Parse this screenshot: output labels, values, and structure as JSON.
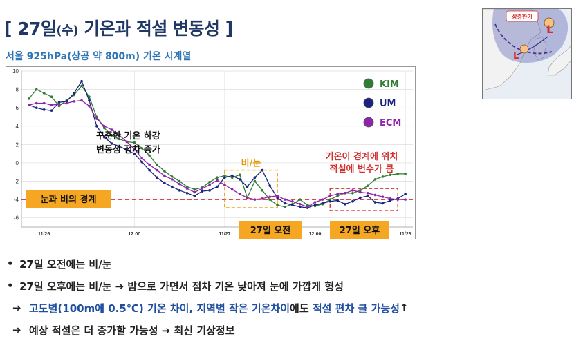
{
  "header": {
    "title_prefix": "[ 27일",
    "title_paren": "(수)",
    "title_rest": " 기온과 적설 변동성 ]",
    "subtitle": "서울 925hPa(상공 약 800m) 기온 시계열"
  },
  "inset_map": {
    "label": "상층한기",
    "low_symbol": "L",
    "colors": {
      "sea": "#e9eef5",
      "land": "#f2f2f2",
      "cold_area": "#4a4fa8"
    }
  },
  "chart_data": {
    "type": "line",
    "x_ticks": [
      {
        "x": 0,
        "label": "11/26"
      },
      {
        "x": 12,
        "label": "12:00"
      },
      {
        "x": 24,
        "label": "11/27"
      },
      {
        "x": 36,
        "label": "12:00"
      },
      {
        "x": 48,
        "label": "11/28"
      }
    ],
    "xlim": [
      -3,
      49
    ],
    "ylim": [
      -7,
      10
    ],
    "y_ticks": [
      10,
      8,
      6,
      4,
      2,
      0,
      -2,
      -4,
      -6
    ],
    "grid": true,
    "legend_position": "top-right",
    "series": [
      {
        "name": "KIM",
        "color": "#2e7d32",
        "x": [
          -2,
          -1,
          0,
          1,
          2,
          3,
          4,
          5,
          6,
          7,
          8,
          9,
          10,
          11,
          12,
          13,
          14,
          15,
          16,
          17,
          18,
          19,
          20,
          21,
          22,
          23,
          24,
          25,
          26,
          27,
          28,
          29,
          30,
          31,
          32,
          33,
          34,
          35,
          36,
          37,
          38,
          39,
          40,
          41,
          42,
          43,
          44,
          45,
          46,
          47,
          48
        ],
        "values": [
          7.0,
          8.0,
          7.6,
          7.2,
          6.2,
          6.8,
          7.4,
          8.4,
          7.2,
          5.0,
          3.8,
          3.0,
          2.6,
          2.3,
          2.2,
          1.6,
          0.8,
          -0.2,
          -0.9,
          -1.5,
          -2.0,
          -2.6,
          -2.9,
          -2.7,
          -2.1,
          -1.6,
          -1.4,
          -1.6,
          -1.3,
          -3.8,
          -2.0,
          -3.0,
          -4.0,
          -4.6,
          -4.8,
          -4.5,
          -4.0,
          -4.6,
          -4.7,
          -4.5,
          -4.0,
          -3.6,
          -3.3,
          -3.3,
          -3.0,
          -2.5,
          -1.8,
          -1.5,
          -1.3,
          -1.2,
          -1.2
        ]
      },
      {
        "name": "UM",
        "color": "#1a237e",
        "x": [
          -2,
          -1,
          0,
          1,
          2,
          3,
          4,
          5,
          6,
          7,
          8,
          9,
          10,
          11,
          12,
          13,
          14,
          15,
          16,
          17,
          18,
          19,
          20,
          21,
          22,
          23,
          24,
          25,
          26,
          27,
          28,
          29,
          30,
          31,
          32,
          33,
          34,
          35,
          36,
          37,
          38,
          39,
          40,
          41,
          42,
          43,
          44,
          45,
          46,
          47,
          48
        ],
        "values": [
          6.3,
          6.0,
          5.8,
          5.7,
          6.6,
          6.7,
          7.6,
          8.9,
          6.8,
          4.0,
          2.8,
          2.1,
          1.8,
          1.4,
          1.0,
          0.1,
          -0.8,
          -1.6,
          -2.2,
          -2.6,
          -3.0,
          -3.3,
          -3.6,
          -3.1,
          -3.0,
          -2.6,
          -1.6,
          -1.4,
          -1.8,
          -2.6,
          -1.6,
          -0.8,
          -2.5,
          -3.8,
          -4.4,
          -4.6,
          -4.8,
          -4.9,
          -4.6,
          -4.4,
          -4.2,
          -4.1,
          -4.5,
          -4.2,
          -3.8,
          -3.6,
          -4.3,
          -4.4,
          -4.1,
          -3.9,
          -3.4
        ]
      },
      {
        "name": "ECM",
        "color": "#8e24aa",
        "x": [
          -2,
          -1,
          0,
          1,
          2,
          3,
          4,
          5,
          6,
          7,
          8,
          9,
          10,
          11,
          12,
          13,
          14,
          15,
          16,
          17,
          18,
          19,
          20,
          21,
          22,
          23,
          24,
          25,
          26,
          27,
          28,
          29,
          30,
          31,
          32,
          33,
          34,
          35,
          36,
          37,
          38,
          39,
          40,
          41,
          42,
          43,
          44,
          45,
          46,
          47,
          48
        ],
        "values": [
          6.3,
          6.5,
          6.5,
          6.3,
          6.4,
          6.5,
          6.7,
          6.8,
          6.2,
          4.8,
          4.0,
          3.6,
          3.0,
          2.3,
          1.5,
          0.5,
          -0.2,
          -0.8,
          -1.4,
          -1.8,
          -2.3,
          -2.8,
          -3.2,
          -2.8,
          -2.4,
          -1.9,
          -2.4,
          -2.9,
          -3.4,
          -3.8,
          -4.0,
          -3.9,
          -3.7,
          -3.6,
          -4.0,
          -4.2,
          -4.5,
          -4.8,
          -4.3,
          -4.0,
          -3.6,
          -3.4,
          -3.3,
          -3.0,
          -3.2,
          -3.3,
          -3.5,
          -3.7,
          -3.9,
          -4.0,
          -4.0
        ]
      }
    ],
    "boundary_line": {
      "y": -4,
      "label": "눈과 비의 경계",
      "color": "#d32f2f"
    },
    "annotations": [
      {
        "text_lines": [
          "꾸준한 기온 하강",
          "변동성 점차 증가"
        ],
        "color": "#111111"
      },
      {
        "text": "비/눈",
        "color": "#e69500",
        "box_x": [
          24,
          31
        ],
        "box_y": [
          -4.9,
          -0.8
        ]
      },
      {
        "text_lines": [
          "기온이 경계에 위치",
          "적설에 변수가 큼"
        ],
        "color": "#d32f2f",
        "box_x": [
          38,
          47
        ],
        "box_y": [
          -5.2,
          -2.8
        ]
      }
    ],
    "period_labels": [
      "27일 오전",
      "27일 오후"
    ]
  },
  "bullets": [
    {
      "marker": "•",
      "segments": [
        {
          "text": "27일 오전에는 비/눈",
          "color": ""
        }
      ]
    },
    {
      "marker": "•",
      "segments": [
        {
          "text": "27일 오후에는 비/눈 ➔ 밤으로 가면서 점차 기온 낮아져 눈에 가깝게 형성",
          "color": ""
        }
      ]
    },
    {
      "marker": "➔",
      "segments": [
        {
          "text": "고도별(100m에 0.5℃) 기온 차이, 지역별 작은 기온차이",
          "color": "blue"
        },
        {
          "text": "에도 ",
          "color": ""
        },
        {
          "text": "적설 편차 클 가능성",
          "color": "blue"
        },
        {
          "text": "↑",
          "color": ""
        }
      ]
    },
    {
      "marker": "➔",
      "segments": [
        {
          "text": "예상 적설은 더 증가할 가능성 ➔ 최신 기상정보",
          "color": ""
        }
      ]
    }
  ]
}
